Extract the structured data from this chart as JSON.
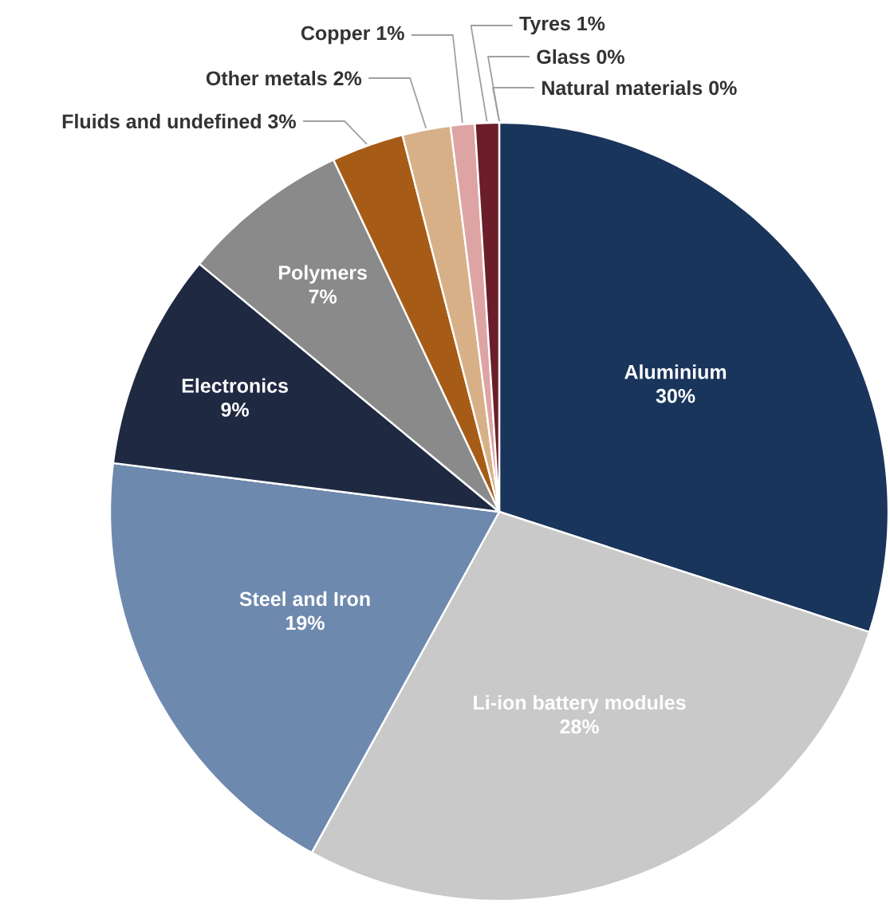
{
  "chart_data": {
    "type": "pie",
    "categories": [
      "Aluminium",
      "Li-ion battery modules",
      "Steel and Iron",
      "Electronics",
      "Polymers",
      "Fluids and undefined",
      "Other metals",
      "Copper",
      "Tyres",
      "Glass",
      "Natural materials"
    ],
    "values": [
      30,
      28,
      19,
      9,
      7,
      3,
      2,
      1,
      1,
      0,
      0
    ],
    "value_labels": [
      "30%",
      "28%",
      "19%",
      "9%",
      "7%",
      "3%",
      "2%",
      "1%",
      "1%",
      "0%",
      "0%"
    ],
    "colors": [
      "#1a355b",
      "#c9c9c9",
      "#6e89ae",
      "#1f2942",
      "#8a8a8a",
      "#a65c17",
      "#d8b088",
      "#dda4a3",
      "#6b1e2a",
      "#f0dcd8",
      "#4a7c3f"
    ]
  }
}
